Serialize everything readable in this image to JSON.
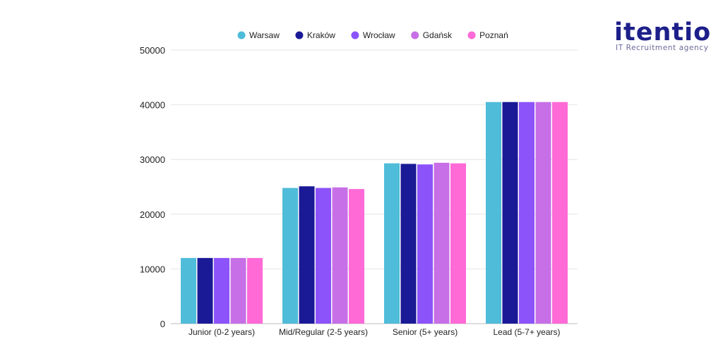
{
  "brand": {
    "name": "itentio",
    "tagline": "IT Recruitment agency",
    "color": "#1d1f8a"
  },
  "chart_data": {
    "type": "bar",
    "title": "",
    "xlabel": "",
    "ylabel": "",
    "ylim": [
      0,
      50000
    ],
    "yticks": [
      0,
      10000,
      20000,
      30000,
      40000,
      50000
    ],
    "grid": true,
    "legend_position": "top",
    "categories": [
      "Junior (0-2 years)",
      "Mid/Regular (2-5 years)",
      "Senior (5+ years)",
      "Lead (5-7+ years)"
    ],
    "series": [
      {
        "name": "Warsaw",
        "color": "#4fbcd9",
        "values": [
          12000,
          24800,
          29300,
          40500
        ]
      },
      {
        "name": "Kraków",
        "color": "#1a1a96",
        "values": [
          12000,
          25100,
          29200,
          40500
        ]
      },
      {
        "name": "Wrocław",
        "color": "#8c53fa",
        "values": [
          12000,
          24800,
          29100,
          40500
        ]
      },
      {
        "name": "Gdańsk",
        "color": "#c76fe6",
        "values": [
          12000,
          24900,
          29400,
          40500
        ]
      },
      {
        "name": "Poznań",
        "color": "#ff6ad7",
        "values": [
          12000,
          24600,
          29300,
          40500
        ]
      }
    ]
  }
}
